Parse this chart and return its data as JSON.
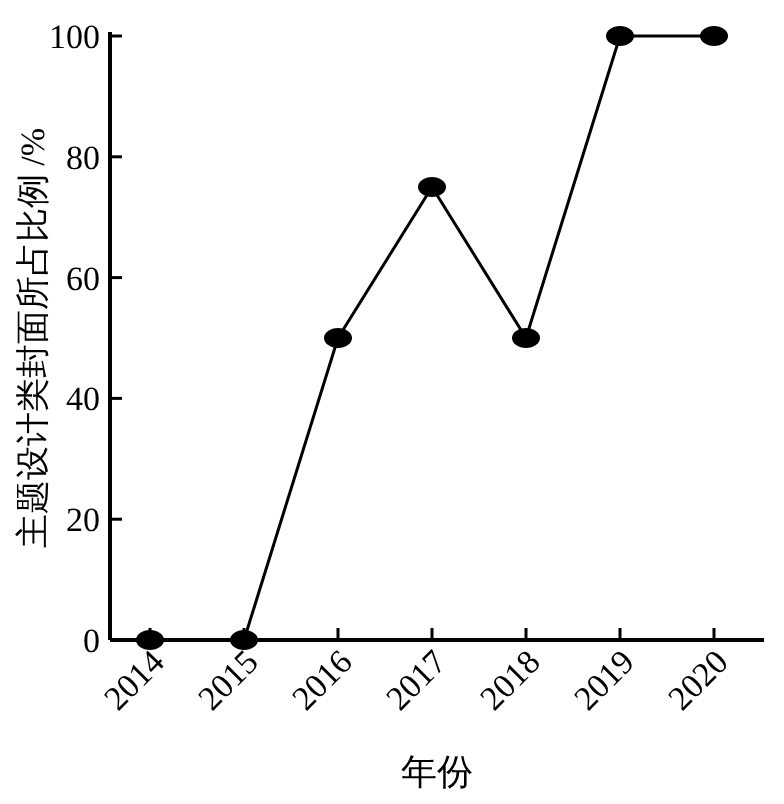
{
  "chart_data": {
    "type": "line",
    "xlabel": "年份",
    "ylabel": "主题设计类封面所占比例 /%",
    "categories": [
      "2014",
      "2015",
      "2016",
      "2017",
      "2018",
      "2019",
      "2020"
    ],
    "series": [
      {
        "color": "#000000",
        "values": [
          0,
          0,
          50,
          75,
          50,
          100,
          100
        ]
      }
    ],
    "ylim": [
      0,
      100
    ],
    "yticks": [
      0,
      20,
      40,
      60,
      80,
      100
    ],
    "marker": "circle",
    "line_style": "solid",
    "grid": false
  }
}
